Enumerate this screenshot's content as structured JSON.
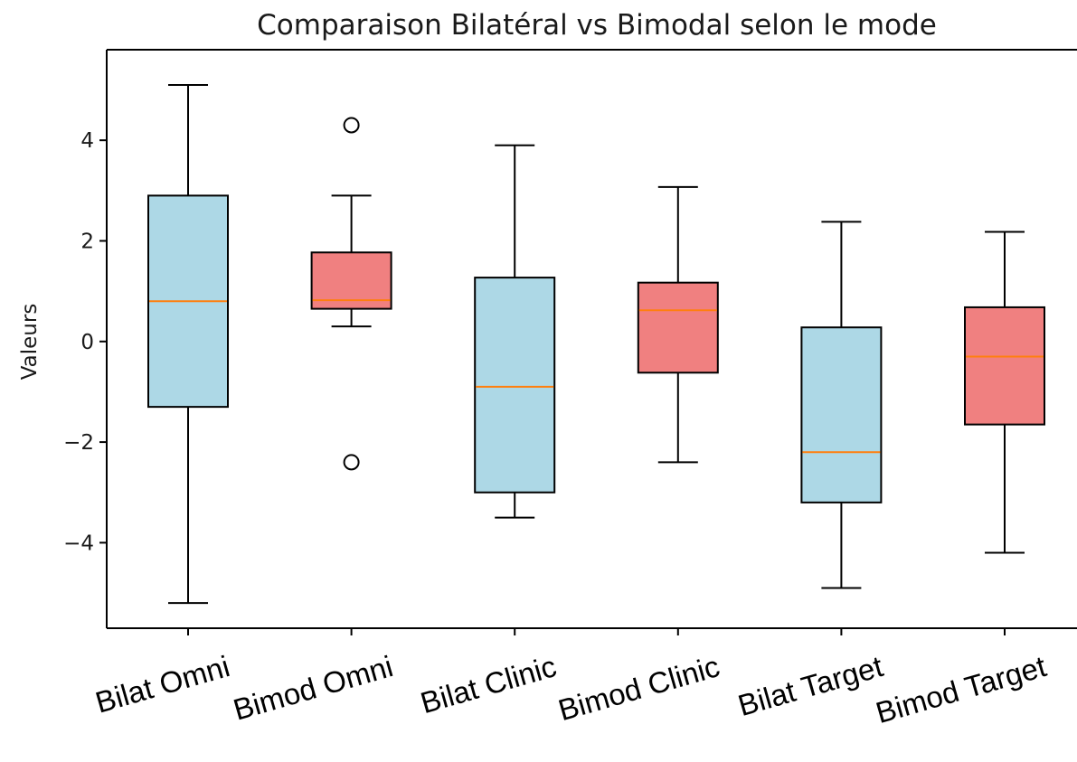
{
  "chart_data": {
    "type": "box",
    "title": "Comparaison Bilatéral vs Bimodal selon le mode",
    "xlabel": "",
    "ylabel": "Valeurs",
    "ylim": [
      -5.7,
      5.8
    ],
    "yticks": [
      -4,
      -2,
      0,
      2,
      4
    ],
    "ytick_labels": [
      "−4",
      "−2",
      "0",
      "2",
      "4"
    ],
    "grid": false,
    "legend": "none",
    "colors": {
      "bilat": "#add8e6",
      "bimod": "#f08080",
      "median": "#ff7f0e",
      "edge": "#000000"
    },
    "categories": [
      "Bilat Omni",
      "Bimod Omni",
      "Bilat Clinic",
      "Bimod Clinic",
      "Bilat Target",
      "Bimod Target"
    ],
    "boxes": [
      {
        "label": "Bilat Omni",
        "group": "bilat",
        "whisker_low": -5.2,
        "q1": -1.3,
        "median": 0.8,
        "q3": 2.9,
        "whisker_high": 5.1,
        "outliers": []
      },
      {
        "label": "Bimod Omni",
        "group": "bimod",
        "whisker_low": 0.3,
        "q1": 0.65,
        "median": 0.82,
        "q3": 1.77,
        "whisker_high": 2.9,
        "outliers": [
          4.3,
          -2.4
        ]
      },
      {
        "label": "Bilat Clinic",
        "group": "bilat",
        "whisker_low": -3.5,
        "q1": -3.0,
        "median": -0.9,
        "q3": 1.27,
        "whisker_high": 3.9,
        "outliers": []
      },
      {
        "label": "Bimod Clinic",
        "group": "bimod",
        "whisker_low": -2.4,
        "q1": -0.62,
        "median": 0.62,
        "q3": 1.17,
        "whisker_high": 3.07,
        "outliers": []
      },
      {
        "label": "Bilat Target",
        "group": "bilat",
        "whisker_low": -4.9,
        "q1": -3.2,
        "median": -2.2,
        "q3": 0.28,
        "whisker_high": 2.38,
        "outliers": []
      },
      {
        "label": "Bimod Target",
        "group": "bimod",
        "whisker_low": -4.2,
        "q1": -1.65,
        "median": -0.3,
        "q3": 0.68,
        "whisker_high": 2.18,
        "outliers": []
      }
    ]
  }
}
